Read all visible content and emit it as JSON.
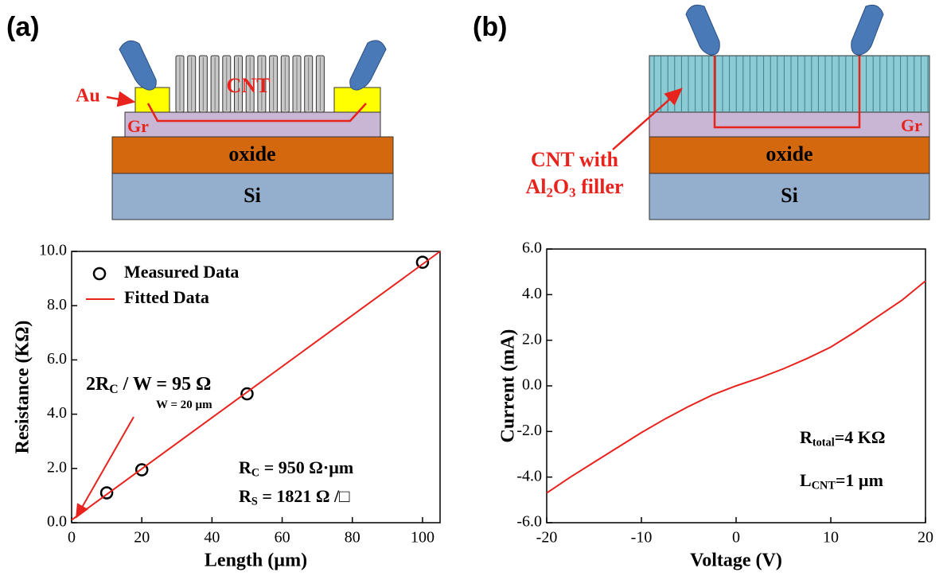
{
  "panel_labels": [
    "(a)",
    "(b)"
  ],
  "schematics": [
    {
      "labels": {
        "au": "Au",
        "cnt": "CNT",
        "gr": "Gr",
        "oxide": "oxide",
        "si": "Si"
      }
    },
    {
      "labels": {
        "cnt_line1": "CNT with",
        "cnt_line2": [
          {
            "text": "Al"
          },
          {
            "text": "2",
            "sub": true
          },
          {
            "text": "O"
          },
          {
            "text": "3",
            "sub": true
          },
          {
            "text": " filler"
          }
        ],
        "gr": "Gr",
        "oxide": "oxide",
        "si": "Si"
      }
    }
  ],
  "chart_data": [
    {
      "type": "scatter",
      "xlabel": "Length (µm)",
      "ylabel": "Resistance (KΩ)",
      "xlim": [
        0,
        105
      ],
      "xticks": [
        0,
        20,
        40,
        60,
        80,
        100
      ],
      "ylim": [
        0,
        10
      ],
      "yticks": [
        {
          "value": 0,
          "label": "0.0"
        },
        {
          "value": 2,
          "label": "2.0"
        },
        {
          "value": 4,
          "label": "4.0"
        },
        {
          "value": 6,
          "label": "6.0"
        },
        {
          "value": 8,
          "label": "8.0"
        },
        {
          "value": 10,
          "label": "10.0"
        }
      ],
      "legend": "upper left",
      "series": [
        {
          "name": "Measured Data",
          "mode": "markers",
          "color": "#000000",
          "x": [
            10,
            20,
            50,
            100
          ],
          "values": [
            1.1,
            1.95,
            4.75,
            9.6
          ]
        },
        {
          "name": "Fitted Data",
          "mode": "line",
          "color": "#e8231e",
          "x": [
            0,
            105
          ],
          "values": [
            0.1,
            10.0
          ]
        }
      ],
      "annotations": [
        [
          {
            "text": "2R"
          },
          {
            "text": "C",
            "sub": true
          },
          {
            "text": " / W = 95 Ω"
          }
        ],
        [
          {
            "text": "W = 20 µm"
          }
        ],
        [
          {
            "text": "R"
          },
          {
            "text": "C",
            "sub": true
          },
          {
            "text": " = 950 Ω·µm"
          }
        ],
        [
          {
            "text": "R"
          },
          {
            "text": "S",
            "sub": true
          },
          {
            "text": " = 1821 Ω /□"
          }
        ]
      ]
    },
    {
      "type": "line",
      "xlabel": "Voltage (V)",
      "ylabel": "Current (mA)",
      "xlim": [
        -20,
        20
      ],
      "xticks": [
        -20,
        -10,
        0,
        10,
        20
      ],
      "ylim": [
        -6,
        6
      ],
      "yticks": [
        {
          "value": -6,
          "label": "-6.0"
        },
        {
          "value": -4,
          "label": "-4.0"
        },
        {
          "value": -2,
          "label": "-2.0"
        },
        {
          "value": 0,
          "label": "0.0"
        },
        {
          "value": 2,
          "label": "2.0"
        },
        {
          "value": 4,
          "label": "4.0"
        },
        {
          "value": 6,
          "label": "6.0"
        }
      ],
      "series": [
        {
          "mode": "line",
          "color": "#e8231e",
          "x": [
            -20,
            -17.5,
            -15,
            -12.5,
            -10,
            -7.5,
            -5,
            -2.5,
            0,
            2.5,
            5,
            7.5,
            10,
            12.5,
            15,
            17.5,
            20
          ],
          "values": [
            -4.7,
            -4.0,
            -3.35,
            -2.7,
            -2.05,
            -1.45,
            -0.9,
            -0.4,
            0,
            0.35,
            0.75,
            1.2,
            1.7,
            2.35,
            3.05,
            3.75,
            4.6
          ]
        }
      ],
      "annotations": [
        [
          {
            "text": "R"
          },
          {
            "text": "total",
            "sub": true
          },
          {
            "text": "=4 KΩ"
          }
        ],
        [
          {
            "text": "L"
          },
          {
            "text": "CNT",
            "sub": true
          },
          {
            "text": "=1 µm"
          }
        ]
      ]
    }
  ]
}
